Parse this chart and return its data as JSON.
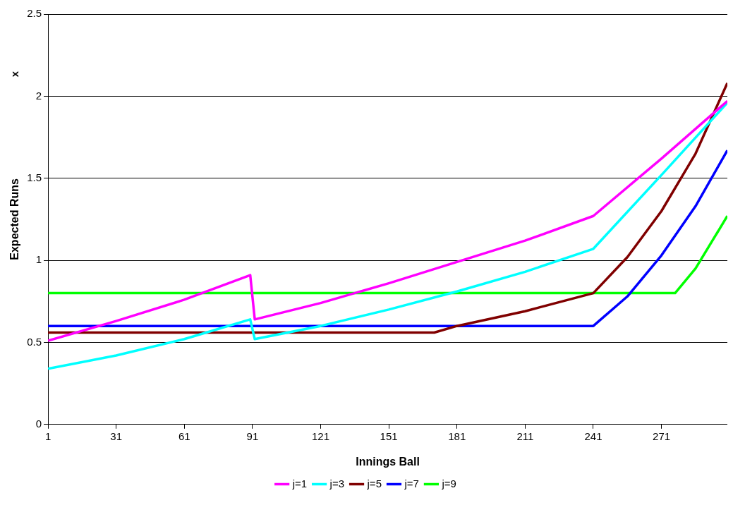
{
  "chart_data": {
    "type": "line",
    "xlabel": "Innings Ball",
    "ylabel": "Expected Runs",
    "annotations": [
      "x"
    ],
    "xlim": [
      1,
      300
    ],
    "xticks": [
      1,
      31,
      61,
      91,
      121,
      151,
      181,
      211,
      241,
      271
    ],
    "ylim": [
      0,
      2.5
    ],
    "yticks": [
      0,
      0.5,
      1,
      1.5,
      2,
      2.5
    ],
    "grid": "y",
    "legend": "bottom",
    "marker": "none",
    "line_style": "solid",
    "series": [
      {
        "name": "j=1",
        "color": "#ff00ff",
        "x": [
          1,
          31,
          61,
          90,
          92,
          121,
          151,
          181,
          211,
          241,
          271,
          300
        ],
        "values": [
          0.51,
          0.63,
          0.76,
          0.91,
          0.64,
          0.74,
          0.86,
          0.99,
          1.12,
          1.27,
          1.62,
          1.97
        ]
      },
      {
        "name": "j=3",
        "color": "#00ffff",
        "x": [
          1,
          31,
          61,
          90,
          92,
          121,
          151,
          181,
          211,
          241,
          271,
          300
        ],
        "values": [
          0.34,
          0.42,
          0.52,
          0.64,
          0.52,
          0.6,
          0.7,
          0.81,
          0.93,
          1.07,
          1.52,
          1.96
        ]
      },
      {
        "name": "j=5",
        "color": "#800000",
        "x": [
          1,
          171,
          181,
          211,
          241,
          256,
          271,
          286,
          300
        ],
        "values": [
          0.56,
          0.56,
          0.6,
          0.69,
          0.8,
          1.02,
          1.3,
          1.65,
          2.08
        ]
      },
      {
        "name": "j=7",
        "color": "#0000ff",
        "x": [
          1,
          241,
          256,
          271,
          286,
          300
        ],
        "values": [
          0.6,
          0.6,
          0.78,
          1.03,
          1.33,
          1.67
        ]
      },
      {
        "name": "j=9",
        "color": "#00ff00",
        "x": [
          1,
          277,
          286,
          300
        ],
        "values": [
          0.8,
          0.8,
          0.95,
          1.27
        ]
      }
    ]
  }
}
